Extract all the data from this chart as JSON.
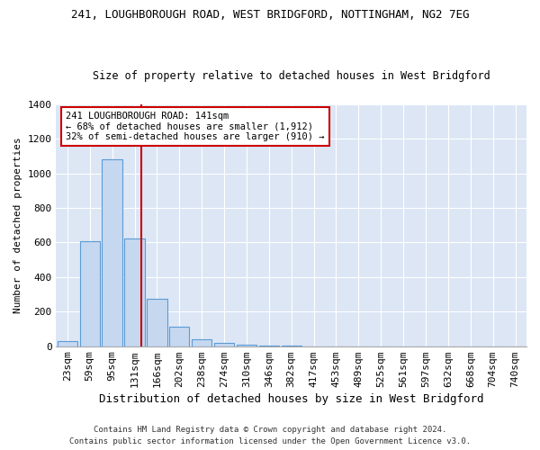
{
  "title1": "241, LOUGHBOROUGH ROAD, WEST BRIDGFORD, NOTTINGHAM, NG2 7EG",
  "title2": "Size of property relative to detached houses in West Bridgford",
  "xlabel": "Distribution of detached houses by size in West Bridgford",
  "ylabel": "Number of detached properties",
  "footer1": "Contains HM Land Registry data © Crown copyright and database right 2024.",
  "footer2": "Contains public sector information licensed under the Open Government Licence v3.0.",
  "bins": [
    "23sqm",
    "59sqm",
    "95sqm",
    "131sqm",
    "166sqm",
    "202sqm",
    "238sqm",
    "274sqm",
    "310sqm",
    "346sqm",
    "382sqm",
    "417sqm",
    "453sqm",
    "489sqm",
    "525sqm",
    "561sqm",
    "597sqm",
    "632sqm",
    "668sqm",
    "704sqm",
    "740sqm"
  ],
  "values": [
    30,
    610,
    1080,
    625,
    275,
    115,
    38,
    20,
    10,
    5,
    2,
    0,
    0,
    0,
    0,
    0,
    0,
    0,
    0,
    0,
    0
  ],
  "bar_color": "#c5d8f0",
  "bar_edge_color": "#5b9bd5",
  "fig_bg_color": "#ffffff",
  "plot_bg_color": "#dce6f5",
  "grid_color": "#ffffff",
  "annotation_box_color": "#ffffff",
  "annotation_border_color": "#cc0000",
  "vline_color": "#cc0000",
  "vline_x_bin": 3,
  "annotation_text1": "241 LOUGHBOROUGH ROAD: 141sqm",
  "annotation_text2": "← 68% of detached houses are smaller (1,912)",
  "annotation_text3": "32% of semi-detached houses are larger (910) →",
  "ylim": [
    0,
    1400
  ],
  "yticks": [
    0,
    200,
    400,
    600,
    800,
    1000,
    1200,
    1400
  ],
  "title1_fontsize": 9,
  "title2_fontsize": 8.5,
  "xlabel_fontsize": 9,
  "ylabel_fontsize": 8,
  "tick_fontsize": 8,
  "annot_fontsize": 7.5,
  "footer_fontsize": 6.5
}
